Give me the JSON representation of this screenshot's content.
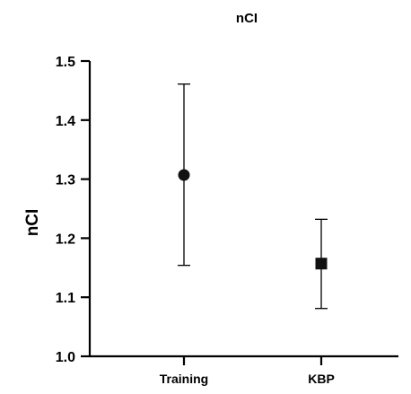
{
  "chart_data": {
    "type": "scatter",
    "title": "nCI",
    "xlabel": "",
    "ylabel": "nCI",
    "ylim": [
      1.0,
      1.5
    ],
    "yticks": [
      1.0,
      1.1,
      1.2,
      1.3,
      1.4,
      1.5
    ],
    "ytick_labels": [
      "1.0",
      "1.1",
      "1.2",
      "1.3",
      "1.4",
      "1.5"
    ],
    "categories": [
      "Training",
      "KBP"
    ],
    "points": [
      {
        "category": "Training",
        "value": 1.307,
        "error_low": 1.154,
        "error_high": 1.461,
        "marker": "circle"
      },
      {
        "category": "KBP",
        "value": 1.157,
        "error_low": 1.081,
        "error_high": 1.232,
        "marker": "square"
      }
    ],
    "grid": false,
    "legend": "none",
    "colors": {
      "marker": "#111111",
      "axis": "#000000"
    }
  }
}
